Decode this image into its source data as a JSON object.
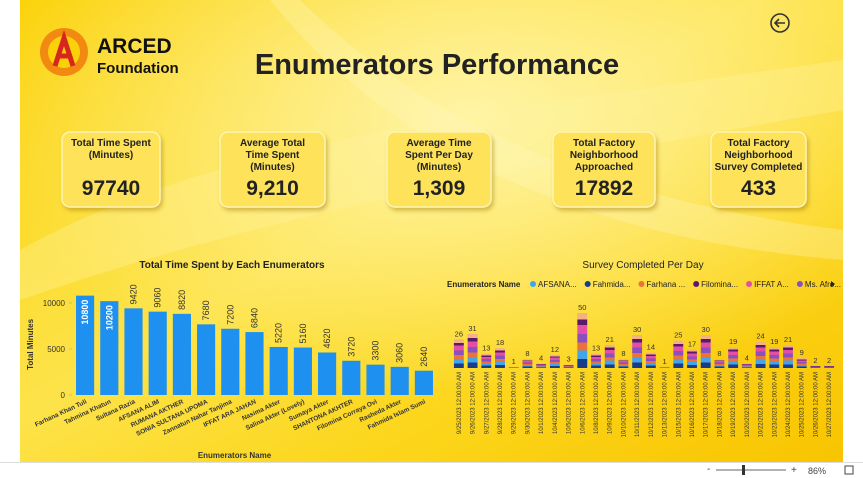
{
  "header": {
    "logo_top": "ARCED",
    "logo_bottom": "Foundation",
    "title": "Enumerators Performance"
  },
  "kpis": [
    {
      "label": "Total Time Spent (Minutes)",
      "value": "97740"
    },
    {
      "label": "Average Total Time Spent (Minutes)",
      "value": "9,210"
    },
    {
      "label": "Average Time Spent Per Day (Minutes)",
      "value": "1,309"
    },
    {
      "label": "Total Factory Neighborhood Approached",
      "value": "17892"
    },
    {
      "label": "Total Factory Neighborhood Survey Completed",
      "value": "433"
    }
  ],
  "chart_data": [
    {
      "type": "bar",
      "title": "Total Time Spent by Each Enumerators",
      "x_label": "Enumerators Name",
      "y_label": "Total Minutes",
      "color": "#1e90f0",
      "categories": [
        "Farhana Khan Tuli",
        "Tahmina Khatun",
        "Sultana Razia",
        "AFSANA ALIM",
        "RUMANA AKTHER",
        "SONIA SULTANA UPOMA",
        "Zannatun Nahar Tanjima",
        "IFFAT ARA JAHAN",
        "Nasima Akter",
        "Salina Akter (Lovely)",
        "Sumaya Akter",
        "SHANTONA AKHTER",
        "Filomina Corraya Ovi",
        "Rasheda Akter",
        "Fahmida Islam Sumi"
      ],
      "values": [
        10800,
        10200,
        9420,
        9060,
        8820,
        7680,
        7200,
        6840,
        5220,
        5160,
        4620,
        3720,
        3300,
        3060,
        2640
      ],
      "ylim": [
        0,
        11000
      ],
      "yticks": [
        0,
        5000,
        10000
      ]
    },
    {
      "type": "bar",
      "title": "Survey Completed Per Day",
      "legend_title": "Enumerators Name",
      "legend": [
        {
          "name": "AFSANA...",
          "color": "#41a5ee"
        },
        {
          "name": "Fahmida...",
          "color": "#1a3a8a"
        },
        {
          "name": "Farhana ...",
          "color": "#e8743b"
        },
        {
          "name": "Filomina...",
          "color": "#5a1a6a"
        },
        {
          "name": "IFFAT A...",
          "color": "#e44fa6"
        },
        {
          "name": "Ms. Afro...",
          "color": "#8a4fc0"
        }
      ],
      "categories": [
        "9/25/2023 12:00:00 AM",
        "9/26/2023 12:00:00 AM",
        "9/27/2023 12:00:00 AM",
        "9/28/2023 12:00:00 AM",
        "9/29/2023 12:00:00 AM",
        "9/30/2023 12:00:00 AM",
        "10/1/2023 12:00:00 AM",
        "10/4/2023 12:00:00 AM",
        "10/5/2023 12:00:00 AM",
        "10/6/2023 12:00:00 AM",
        "10/8/2023 12:00:00 AM",
        "10/9/2023 12:00:00 AM",
        "10/10/2023 12:00:00 AM",
        "10/11/2023 12:00:00 AM",
        "10/12/2023 12:00:00 AM",
        "10/13/2023 12:00:00 AM",
        "10/15/2023 12:00:00 AM",
        "10/16/2023 12:00:00 AM",
        "10/17/2023 12:00:00 AM",
        "10/18/2023 12:00:00 AM",
        "10/19/2023 12:00:00 AM",
        "10/20/2023 12:00:00 AM",
        "10/22/2023 12:00:00 AM",
        "10/23/2023 12:00:00 AM",
        "10/24/2023 12:00:00 AM",
        "10/25/2023 12:00:00 AM",
        "10/26/2023 12:00:00 AM",
        "10/27/2023 12:00:00 AM"
      ],
      "values": [
        26,
        31,
        13,
        18,
        1,
        8,
        4,
        12,
        3,
        50,
        13,
        21,
        8,
        30,
        14,
        1,
        25,
        17,
        30,
        8,
        19,
        4,
        24,
        19,
        21,
        9,
        2,
        2
      ],
      "ylim": [
        0,
        50
      ]
    }
  ],
  "status_bar": {
    "zoom": "86%"
  }
}
